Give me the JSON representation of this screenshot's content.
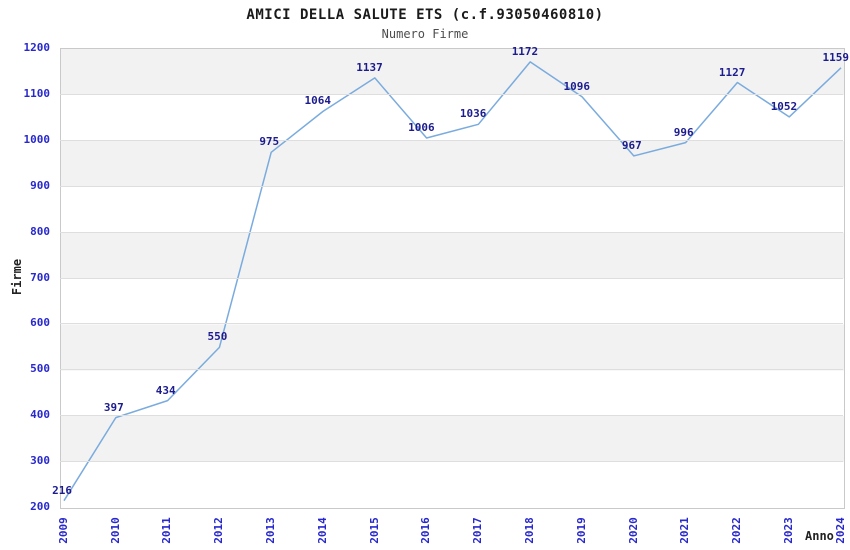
{
  "chart_data": {
    "type": "line",
    "title": "AMICI DELLA SALUTE ETS (c.f.93050460810)",
    "subtitle": "Numero Firme",
    "xlabel": "Anno",
    "ylabel": "Firme",
    "categories": [
      "2009",
      "2010",
      "2011",
      "2012",
      "2013",
      "2014",
      "2015",
      "2016",
      "2017",
      "2018",
      "2019",
      "2020",
      "2021",
      "2022",
      "2023",
      "2024"
    ],
    "values": [
      216,
      397,
      434,
      550,
      975,
      1064,
      1137,
      1006,
      1036,
      1172,
      1096,
      967,
      996,
      1127,
      1052,
      1159
    ],
    "ylim": [
      200,
      1200
    ],
    "ytick_step": 100,
    "grid": true,
    "legend": "none",
    "colors": {
      "line": "#7aabde",
      "data_label": "#1c1c8f",
      "axis_tick": "#2828cd",
      "band_gray": "#f2f2f2",
      "band_white": "#ffffff",
      "gridline": "#dedede",
      "plot_border": "#c9c9c9"
    }
  }
}
